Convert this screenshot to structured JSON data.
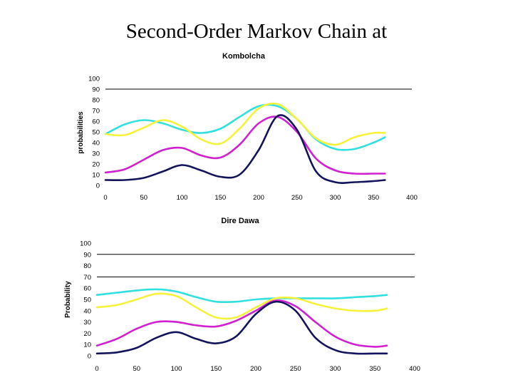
{
  "page": {
    "title": "Second-Order Markov Chain at"
  },
  "chart_data": [
    {
      "type": "line",
      "title": "Kombolcha",
      "xlabel": "",
      "ylabel": "probabilities",
      "xlim": [
        0,
        400
      ],
      "ylim": [
        0,
        100
      ],
      "xticks": [
        0,
        50,
        100,
        150,
        200,
        250,
        300,
        350,
        400
      ],
      "yticks": [
        0,
        10,
        20,
        30,
        40,
        50,
        60,
        70,
        80,
        90,
        100
      ],
      "hlines": [
        90
      ],
      "x": [
        0,
        25,
        50,
        75,
        100,
        125,
        150,
        175,
        200,
        225,
        250,
        275,
        300,
        325,
        350,
        365
      ],
      "series": [
        {
          "name": "cyan",
          "color": "#33e0e0",
          "values": [
            48,
            57,
            61,
            58,
            52,
            49,
            53,
            64,
            74,
            74,
            62,
            43,
            34,
            34,
            40,
            45
          ]
        },
        {
          "name": "yellow",
          "color": "#f6f23b",
          "values": [
            48,
            47,
            54,
            61,
            55,
            43,
            39,
            53,
            72,
            76,
            62,
            44,
            38,
            45,
            49,
            49
          ]
        },
        {
          "name": "magenta",
          "color": "#d020d0",
          "values": [
            12,
            15,
            24,
            33,
            35,
            28,
            26,
            38,
            58,
            64,
            50,
            25,
            14,
            11,
            11,
            11
          ]
        },
        {
          "name": "navy",
          "color": "#14145c",
          "values": [
            5,
            5,
            7,
            13,
            19,
            14,
            8,
            10,
            33,
            65,
            52,
            13,
            3,
            3,
            4,
            5
          ]
        }
      ]
    },
    {
      "type": "line",
      "title": "Dire Dawa",
      "xlabel": "",
      "ylabel": "Probability",
      "xlim": [
        0,
        400
      ],
      "ylim": [
        0,
        100
      ],
      "xticks": [
        0,
        50,
        100,
        150,
        200,
        250,
        300,
        350,
        400
      ],
      "yticks": [
        0,
        10,
        20,
        30,
        40,
        50,
        60,
        70,
        80,
        90,
        100
      ],
      "hlines": [
        90,
        70
      ],
      "x": [
        0,
        25,
        50,
        75,
        100,
        125,
        150,
        175,
        200,
        225,
        250,
        275,
        300,
        325,
        350,
        365
      ],
      "series": [
        {
          "name": "cyan",
          "color": "#33e0e0",
          "values": [
            54,
            56,
            58,
            59,
            57,
            52,
            48,
            48,
            50,
            51,
            51,
            51,
            51,
            52,
            53,
            54
          ]
        },
        {
          "name": "yellow",
          "color": "#f6f23b",
          "values": [
            43,
            45,
            50,
            55,
            53,
            43,
            34,
            34,
            43,
            51,
            51,
            46,
            42,
            40,
            40,
            42
          ]
        },
        {
          "name": "magenta",
          "color": "#d020d0",
          "values": [
            9,
            15,
            24,
            30,
            30,
            27,
            26,
            31,
            40,
            49,
            44,
            30,
            17,
            10,
            8,
            9
          ]
        },
        {
          "name": "navy",
          "color": "#14145c",
          "values": [
            2,
            3,
            7,
            16,
            21,
            15,
            11,
            17,
            37,
            48,
            40,
            16,
            5,
            2,
            2,
            2
          ]
        }
      ]
    }
  ]
}
